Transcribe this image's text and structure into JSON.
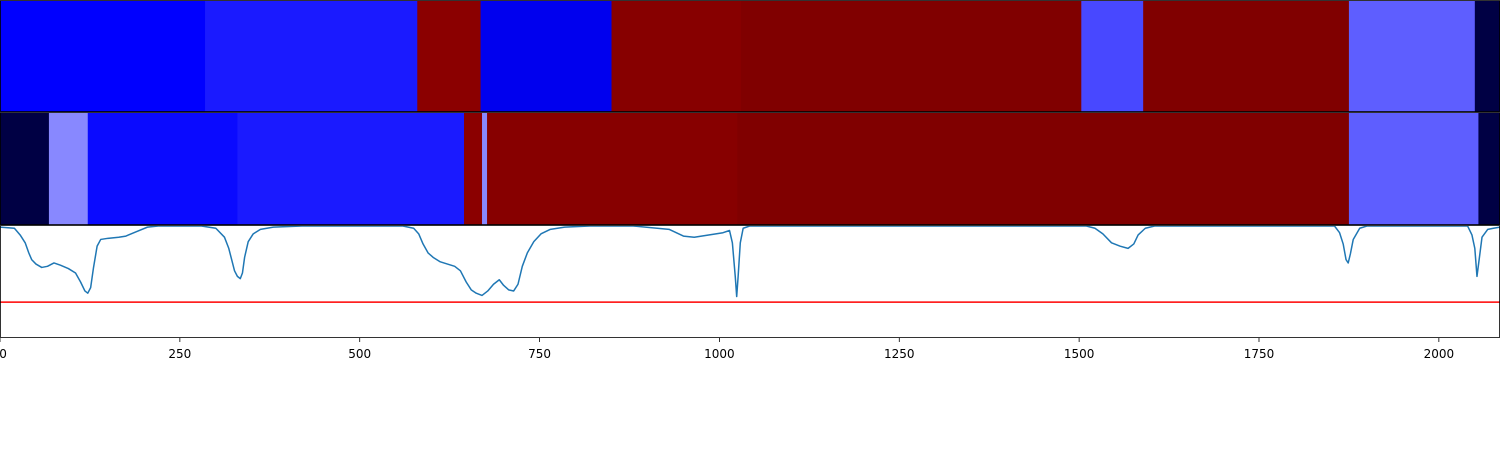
{
  "chart_data": {
    "type": "heatmap",
    "title": "",
    "xlabel": "",
    "ylabel": "",
    "xlim": [
      0,
      2085
    ],
    "grid": false,
    "legend": "none",
    "x_ticks": [
      0,
      250,
      500,
      750,
      1000,
      1250,
      1500,
      1750,
      2000
    ],
    "x_tick_labels": [
      "0",
      "250",
      "500",
      "750",
      "1000",
      "1250",
      "1500",
      "1750",
      "2000"
    ],
    "segment_rows": [
      {
        "segments": [
          {
            "start": 0,
            "end": 285,
            "color": "#0000ff"
          },
          {
            "start": 285,
            "end": 580,
            "color": "#1a1aff"
          },
          {
            "start": 580,
            "end": 668,
            "color": "#8b0000"
          },
          {
            "start": 668,
            "end": 850,
            "color": "#0000ee"
          },
          {
            "start": 850,
            "end": 1030,
            "color": "#870000"
          },
          {
            "start": 1030,
            "end": 1503,
            "color": "#800000"
          },
          {
            "start": 1503,
            "end": 1589,
            "color": "#4848ff"
          },
          {
            "start": 1589,
            "end": 1875,
            "color": "#800000"
          },
          {
            "start": 1875,
            "end": 2050,
            "color": "#5e5eff"
          },
          {
            "start": 2050,
            "end": 2085,
            "color": "#000044"
          }
        ]
      },
      {
        "segments": [
          {
            "start": 0,
            "end": 68,
            "color": "#000044"
          },
          {
            "start": 68,
            "end": 122,
            "color": "#8888ff"
          },
          {
            "start": 122,
            "end": 330,
            "color": "#0a0aff"
          },
          {
            "start": 330,
            "end": 645,
            "color": "#1a1aff"
          },
          {
            "start": 645,
            "end": 670,
            "color": "#8b0000"
          },
          {
            "start": 670,
            "end": 677,
            "color": "#8888ff"
          },
          {
            "start": 677,
            "end": 1025,
            "color": "#870000"
          },
          {
            "start": 1025,
            "end": 1875,
            "color": "#800000"
          },
          {
            "start": 1875,
            "end": 2055,
            "color": "#5e5eff"
          },
          {
            "start": 2055,
            "end": 2085,
            "color": "#000044"
          }
        ]
      }
    ],
    "line_panel": {
      "ylim": [
        0,
        1
      ],
      "line_color": "#1f77b4",
      "threshold": 0.32,
      "threshold_color": "#ff0000",
      "points": [
        [
          0,
          0.99
        ],
        [
          20,
          0.98
        ],
        [
          28,
          0.92
        ],
        [
          35,
          0.85
        ],
        [
          40,
          0.76
        ],
        [
          44,
          0.7
        ],
        [
          50,
          0.66
        ],
        [
          58,
          0.63
        ],
        [
          66,
          0.64
        ],
        [
          75,
          0.67
        ],
        [
          84,
          0.65
        ],
        [
          95,
          0.62
        ],
        [
          105,
          0.58
        ],
        [
          112,
          0.5
        ],
        [
          118,
          0.42
        ],
        [
          122,
          0.4
        ],
        [
          126,
          0.45
        ],
        [
          130,
          0.63
        ],
        [
          135,
          0.82
        ],
        [
          140,
          0.88
        ],
        [
          150,
          0.89
        ],
        [
          165,
          0.9
        ],
        [
          175,
          0.91
        ],
        [
          190,
          0.95
        ],
        [
          205,
          0.99
        ],
        [
          220,
          1.0
        ],
        [
          280,
          1.0
        ],
        [
          300,
          0.98
        ],
        [
          312,
          0.9
        ],
        [
          318,
          0.8
        ],
        [
          322,
          0.7
        ],
        [
          326,
          0.6
        ],
        [
          330,
          0.55
        ],
        [
          334,
          0.53
        ],
        [
          337,
          0.58
        ],
        [
          340,
          0.72
        ],
        [
          345,
          0.86
        ],
        [
          352,
          0.93
        ],
        [
          362,
          0.97
        ],
        [
          380,
          0.99
        ],
        [
          420,
          1.0
        ],
        [
          560,
          1.0
        ],
        [
          575,
          0.98
        ],
        [
          582,
          0.93
        ],
        [
          588,
          0.84
        ],
        [
          595,
          0.76
        ],
        [
          602,
          0.72
        ],
        [
          612,
          0.68
        ],
        [
          622,
          0.66
        ],
        [
          632,
          0.64
        ],
        [
          640,
          0.6
        ],
        [
          648,
          0.5
        ],
        [
          655,
          0.43
        ],
        [
          662,
          0.4
        ],
        [
          670,
          0.38
        ],
        [
          678,
          0.42
        ],
        [
          686,
          0.48
        ],
        [
          694,
          0.52
        ],
        [
          700,
          0.47
        ],
        [
          707,
          0.43
        ],
        [
          714,
          0.42
        ],
        [
          720,
          0.48
        ],
        [
          726,
          0.64
        ],
        [
          733,
          0.76
        ],
        [
          742,
          0.86
        ],
        [
          752,
          0.93
        ],
        [
          765,
          0.97
        ],
        [
          785,
          0.99
        ],
        [
          820,
          1.0
        ],
        [
          880,
          1.0
        ],
        [
          930,
          0.97
        ],
        [
          950,
          0.91
        ],
        [
          965,
          0.9
        ],
        [
          985,
          0.92
        ],
        [
          1005,
          0.94
        ],
        [
          1014,
          0.96
        ],
        [
          1018,
          0.85
        ],
        [
          1022,
          0.55
        ],
        [
          1024,
          0.37
        ],
        [
          1026,
          0.55
        ],
        [
          1029,
          0.85
        ],
        [
          1033,
          0.98
        ],
        [
          1042,
          1.0
        ],
        [
          1510,
          1.0
        ],
        [
          1522,
          0.98
        ],
        [
          1533,
          0.93
        ],
        [
          1545,
          0.85
        ],
        [
          1557,
          0.82
        ],
        [
          1568,
          0.8
        ],
        [
          1576,
          0.84
        ],
        [
          1582,
          0.92
        ],
        [
          1592,
          0.98
        ],
        [
          1605,
          1.0
        ],
        [
          1855,
          1.0
        ],
        [
          1862,
          0.94
        ],
        [
          1867,
          0.84
        ],
        [
          1871,
          0.7
        ],
        [
          1874,
          0.67
        ],
        [
          1877,
          0.75
        ],
        [
          1881,
          0.88
        ],
        [
          1890,
          0.98
        ],
        [
          1900,
          1.0
        ],
        [
          2040,
          1.0
        ],
        [
          2046,
          0.92
        ],
        [
          2050,
          0.8
        ],
        [
          2053,
          0.55
        ],
        [
          2056,
          0.7
        ],
        [
          2060,
          0.9
        ],
        [
          2068,
          0.97
        ],
        [
          2076,
          0.98
        ],
        [
          2085,
          0.99
        ]
      ]
    }
  }
}
